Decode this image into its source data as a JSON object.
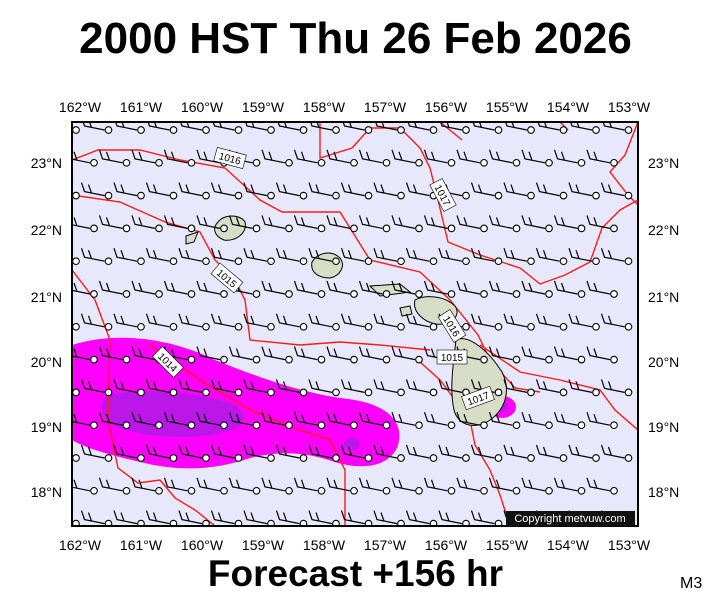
{
  "title": "2000 HST Thu 26 Feb 2026",
  "footer": "Forecast +156 hr",
  "model": "M3",
  "copyright": "Copyright metvuw.com",
  "colors": {
    "ocean": "#e8e8fc",
    "isobar": "#ff1a1a",
    "rain_light": "#ff00ff",
    "rain_heavy": "#a41fe0",
    "land": "#d8ddc8"
  },
  "axes": {
    "lon_labels": [
      "162°W",
      "161°W",
      "160°W",
      "159°W",
      "158°W",
      "157°W",
      "156°W",
      "155°W",
      "154°W",
      "153°W"
    ],
    "lat_labels": [
      "23°N",
      "22°N",
      "21°N",
      "20°N",
      "19°N",
      "18°N"
    ]
  },
  "isobar_labels": [
    "1016",
    "1017",
    "1015",
    "1016",
    "1014",
    "1015",
    "1017"
  ],
  "icons": {
    "wind_barb": "wind-barb-icon",
    "station": "station-circle-icon"
  }
}
